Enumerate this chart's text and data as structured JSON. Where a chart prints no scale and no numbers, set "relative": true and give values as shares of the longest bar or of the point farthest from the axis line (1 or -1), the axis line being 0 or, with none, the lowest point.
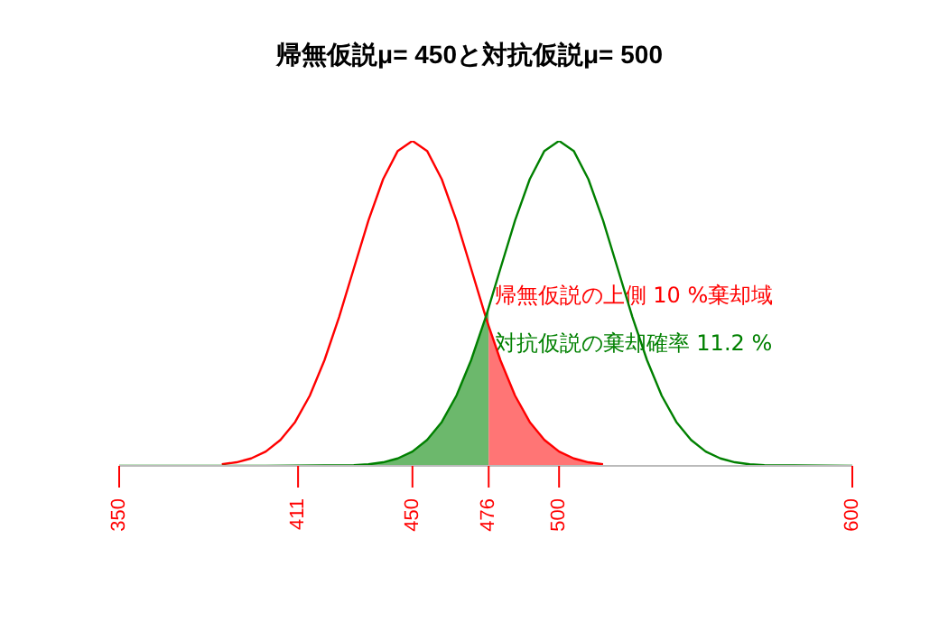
{
  "chart_data": {
    "type": "line",
    "title": "帰無仮説μ= 450と対抗仮説μ= 500",
    "relative": true,
    "xlim": [
      350,
      600
    ],
    "xticks": [
      350,
      411,
      450,
      476,
      500,
      600
    ],
    "series": [
      {
        "color": "#ff0000",
        "x": [
          385,
          390,
          395,
          400,
          405,
          410,
          415,
          420,
          425,
          430,
          435,
          440,
          445,
          450,
          455,
          460,
          465,
          470,
          475,
          476,
          480,
          485,
          490,
          495,
          500,
          505,
          510,
          515
        ],
        "values": [
          0.005,
          0.011,
          0.023,
          0.044,
          0.08,
          0.135,
          0.216,
          0.325,
          0.458,
          0.607,
          0.755,
          0.882,
          0.969,
          1,
          0.969,
          0.882,
          0.755,
          0.607,
          0.458,
          0.43,
          0.325,
          0.216,
          0.135,
          0.08,
          0.044,
          0.023,
          0.011,
          0.005
        ]
      },
      {
        "color": "#008000",
        "x": [
          350,
          400,
          430,
          435,
          440,
          445,
          450,
          455,
          460,
          465,
          470,
          475,
          476,
          480,
          485,
          490,
          495,
          500,
          505,
          510,
          515,
          520,
          525,
          530,
          535,
          540,
          545,
          550,
          555,
          560,
          565,
          570,
          600
        ],
        "values": [
          0,
          0,
          0.002,
          0.005,
          0.011,
          0.023,
          0.044,
          0.08,
          0.135,
          0.216,
          0.325,
          0.458,
          0.487,
          0.607,
          0.755,
          0.882,
          0.969,
          1,
          0.969,
          0.882,
          0.755,
          0.607,
          0.458,
          0.325,
          0.216,
          0.135,
          0.08,
          0.044,
          0.023,
          0.011,
          0.005,
          0.002,
          0
        ]
      },
      {
        "type": "area",
        "color": "#6cb86c",
        "x": [
          430,
          435,
          440,
          445,
          450,
          455,
          460,
          465,
          470,
          475,
          476
        ],
        "values": [
          0.002,
          0.005,
          0.011,
          0.023,
          0.044,
          0.08,
          0.135,
          0.216,
          0.325,
          0.458,
          0.487
        ]
      },
      {
        "type": "area",
        "color": "#ff7575",
        "x": [
          476,
          480,
          485,
          490,
          495,
          500,
          505,
          510,
          515
        ],
        "values": [
          0.43,
          0.325,
          0.216,
          0.135,
          0.08,
          0.044,
          0.023,
          0.011,
          0.005
        ]
      }
    ],
    "annotations": [
      {
        "text": "帰無仮説の上側 10 %棄却域",
        "x": 478,
        "y": 0.525
      },
      {
        "text": "対抗仮説の棄却確率 11.2 %",
        "x": 478,
        "y": 0.377
      }
    ]
  }
}
